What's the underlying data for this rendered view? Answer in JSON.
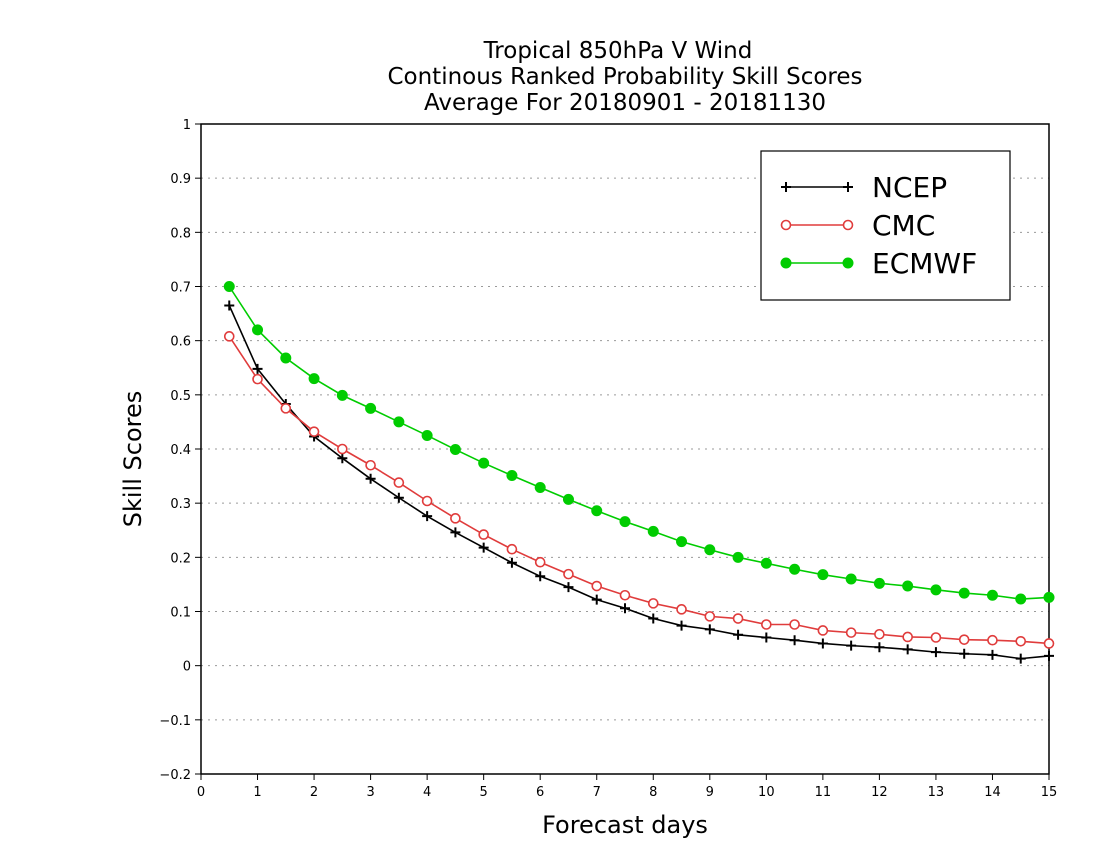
{
  "chart_data": {
    "type": "line",
    "title": [
      "Tropical 850hPa V Wind",
      "Continous Ranked Probability Skill Scores",
      "Average For 20180901 - 20181130"
    ],
    "xlabel": "Forecast days",
    "ylabel": "Skill Scores",
    "xlim": [
      0,
      15
    ],
    "ylim": [
      -0.2,
      1
    ],
    "x_ticks": [
      "0",
      "1",
      "2",
      "3",
      "4",
      "5",
      "6",
      "7",
      "8",
      "9",
      "10",
      "11",
      "12",
      "13",
      "14",
      "15"
    ],
    "y_ticks": [
      "−0.2",
      "−0.1",
      "0",
      "0.1",
      "0.2",
      "0.3",
      "0.4",
      "0.5",
      "0.6",
      "0.7",
      "0.8",
      "0.9",
      "1"
    ],
    "grid": "horizontal dotted",
    "legend_position": "top-right",
    "x": [
      0.5,
      1,
      1.5,
      2,
      2.5,
      3,
      3.5,
      4,
      4.5,
      5,
      5.5,
      6,
      6.5,
      7,
      7.5,
      8,
      8.5,
      9,
      9.5,
      10,
      10.5,
      11,
      11.5,
      12,
      12.5,
      13,
      13.5,
      14,
      14.5,
      15
    ],
    "series": [
      {
        "name": "NCEP",
        "color": "#000000",
        "marker": "plus",
        "values": [
          0.665,
          0.548,
          0.483,
          0.423,
          0.383,
          0.345,
          0.31,
          0.276,
          0.246,
          0.218,
          0.19,
          0.165,
          0.145,
          0.122,
          0.106,
          0.087,
          0.074,
          0.067,
          0.057,
          0.052,
          0.047,
          0.041,
          0.037,
          0.034,
          0.03,
          0.025,
          0.022,
          0.02,
          0.013,
          0.018
        ]
      },
      {
        "name": "CMC",
        "color": "#e03c3c",
        "marker": "open-circle",
        "values": [
          0.608,
          0.529,
          0.475,
          0.432,
          0.4,
          0.37,
          0.338,
          0.304,
          0.272,
          0.242,
          0.215,
          0.191,
          0.169,
          0.147,
          0.13,
          0.115,
          0.104,
          0.091,
          0.087,
          0.076,
          0.076,
          0.065,
          0.061,
          0.058,
          0.053,
          0.052,
          0.048,
          0.047,
          0.045,
          0.041
        ]
      },
      {
        "name": "ECMWF",
        "color": "#00cc00",
        "marker": "filled-circle",
        "values": [
          0.7,
          0.62,
          0.568,
          0.53,
          0.499,
          0.475,
          0.45,
          0.425,
          0.399,
          0.374,
          0.351,
          0.329,
          0.307,
          0.286,
          0.266,
          0.248,
          0.229,
          0.214,
          0.2,
          0.189,
          0.178,
          0.168,
          0.16,
          0.152,
          0.147,
          0.14,
          0.134,
          0.13,
          0.123,
          0.126
        ]
      }
    ]
  }
}
